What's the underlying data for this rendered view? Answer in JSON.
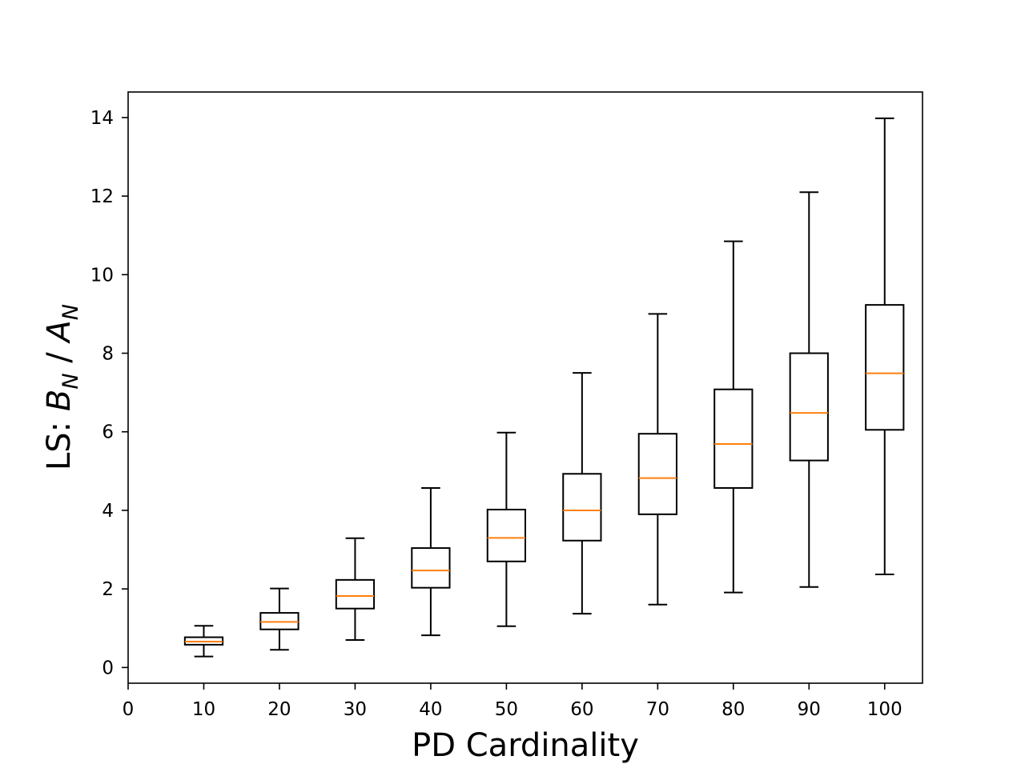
{
  "chart_data": {
    "type": "box",
    "xlabel": "PD Cardinality",
    "ylabel": {
      "prefix": "LS: ",
      "num_var": "B",
      "num_sub": "N",
      "separator": " / ",
      "den_var": "A",
      "den_sub": "N"
    },
    "xlim": [
      0,
      105
    ],
    "ylim": [
      -0.4,
      14.65
    ],
    "x_ticks": [
      "0",
      "10",
      "20",
      "30",
      "40",
      "50",
      "60",
      "70",
      "80",
      "90",
      "100"
    ],
    "y_ticks": [
      "0",
      "2",
      "4",
      "6",
      "8",
      "10",
      "12",
      "14"
    ],
    "grid": false,
    "colors": {
      "box": "#000000",
      "median": "#ff7f0e"
    },
    "boxes": [
      {
        "x": 10,
        "whisker_low": 0.28,
        "q1": 0.58,
        "median": 0.66,
        "q3": 0.77,
        "whisker_high": 1.06
      },
      {
        "x": 20,
        "whisker_low": 0.45,
        "q1": 0.97,
        "median": 1.16,
        "q3": 1.39,
        "whisker_high": 2.01
      },
      {
        "x": 30,
        "whisker_low": 0.7,
        "q1": 1.5,
        "median": 1.82,
        "q3": 2.23,
        "whisker_high": 3.29
      },
      {
        "x": 40,
        "whisker_low": 0.82,
        "q1": 2.03,
        "median": 2.47,
        "q3": 3.04,
        "whisker_high": 4.57
      },
      {
        "x": 50,
        "whisker_low": 1.05,
        "q1": 2.7,
        "median": 3.3,
        "q3": 4.02,
        "whisker_high": 5.98
      },
      {
        "x": 60,
        "whisker_low": 1.37,
        "q1": 3.23,
        "median": 4.0,
        "q3": 4.93,
        "whisker_high": 7.5
      },
      {
        "x": 70,
        "whisker_low": 1.6,
        "q1": 3.9,
        "median": 4.82,
        "q3": 5.95,
        "whisker_high": 9.0
      },
      {
        "x": 80,
        "whisker_low": 1.91,
        "q1": 4.57,
        "median": 5.69,
        "q3": 7.08,
        "whisker_high": 10.85
      },
      {
        "x": 90,
        "whisker_low": 2.05,
        "q1": 5.27,
        "median": 6.48,
        "q3": 8.0,
        "whisker_high": 12.1
      },
      {
        "x": 100,
        "whisker_low": 2.37,
        "q1": 6.05,
        "median": 7.49,
        "q3": 9.23,
        "whisker_high": 13.98
      }
    ]
  }
}
